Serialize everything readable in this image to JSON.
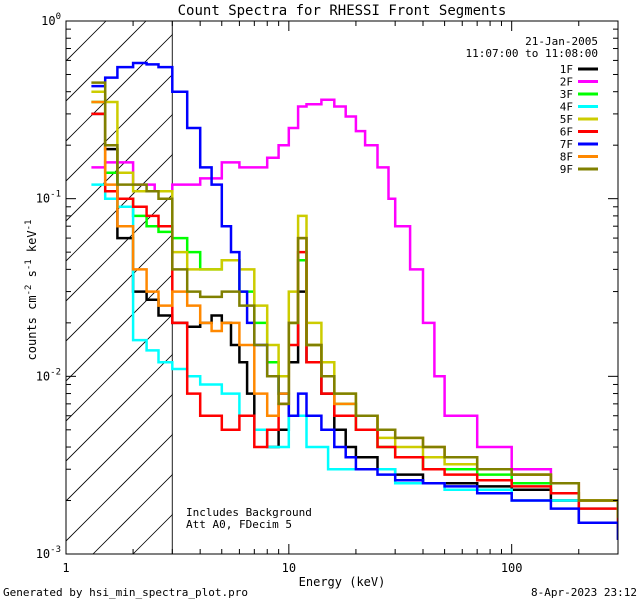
{
  "footer": {
    "left": "Generated by hsi_min_spectra_plot.pro",
    "right": "8-Apr-2023 23:12"
  },
  "chart_data": {
    "type": "line",
    "title": "Count Spectra for RHESSI Front Segments",
    "xlabel": "Energy (keV)",
    "ylabel_parts": [
      "counts cm",
      "-2",
      " s",
      "-1",
      " keV",
      "-1"
    ],
    "xscale": "log",
    "yscale": "log",
    "xlim": [
      1,
      300
    ],
    "ylim": [
      0.001,
      1
    ],
    "x_ticklabels": [
      {
        "value": 1,
        "label": "1"
      },
      {
        "value": 10,
        "label": "10"
      },
      {
        "value": 100,
        "label": "100"
      }
    ],
    "y_ticklabels": [
      {
        "value": 0.001,
        "mant": "10",
        "exp": "-3"
      },
      {
        "value": 0.01,
        "mant": "10",
        "exp": "-2"
      },
      {
        "value": 0.1,
        "mant": "10",
        "exp": "-1"
      },
      {
        "value": 1,
        "mant": "10",
        "exp": "0"
      }
    ],
    "date_label": "21-Jan-2005",
    "time_range_label": "11:07:00 to 11:08:00",
    "annotations": [
      "Includes Background",
      "Att A0, FDecim 5"
    ],
    "hatched_region": {
      "x_from": 1,
      "x_to": 3
    },
    "series": [
      {
        "name": "1F",
        "color": "#000000",
        "x": [
          1.3,
          1.5,
          1.7,
          2.0,
          2.3,
          2.6,
          3.0,
          3.5,
          4.0,
          4.5,
          5.0,
          5.5,
          6.0,
          6.5,
          7.0,
          8.0,
          9.0,
          10.0,
          11.0,
          12.0,
          14.0,
          16.0,
          18.0,
          20.0,
          25.0,
          30.0,
          40.0,
          50.0,
          70.0,
          100.0,
          150.0,
          200.0,
          300.0
        ],
        "values": [
          0.3,
          0.19,
          0.06,
          0.03,
          0.027,
          0.022,
          0.02,
          0.019,
          0.02,
          0.022,
          0.02,
          0.015,
          0.012,
          0.008,
          0.005,
          0.004,
          0.005,
          0.012,
          0.03,
          0.012,
          0.008,
          0.005,
          0.004,
          0.0035,
          0.003,
          0.0028,
          0.0025,
          0.0025,
          0.0024,
          0.0023,
          0.002,
          0.0015,
          0.0012
        ]
      },
      {
        "name": "2F",
        "color": "#ff00ff",
        "x": [
          1.3,
          1.5,
          1.7,
          2.0,
          2.5,
          3.0,
          3.5,
          4.0,
          5.0,
          6.0,
          7.0,
          8.0,
          9.0,
          10.0,
          11.0,
          12.0,
          14.0,
          16.0,
          18.0,
          20.0,
          22.0,
          25.0,
          28.0,
          30.0,
          35.0,
          40.0,
          45.0,
          50.0,
          70.0,
          100.0,
          150.0,
          200.0,
          300.0
        ],
        "values": [
          0.15,
          0.16,
          0.16,
          0.12,
          0.11,
          0.12,
          0.12,
          0.13,
          0.16,
          0.15,
          0.15,
          0.17,
          0.2,
          0.25,
          0.33,
          0.34,
          0.36,
          0.33,
          0.29,
          0.24,
          0.2,
          0.15,
          0.1,
          0.07,
          0.04,
          0.02,
          0.01,
          0.006,
          0.004,
          0.003,
          0.0025,
          0.002,
          0.0015
        ]
      },
      {
        "name": "3F",
        "color": "#00ff00",
        "x": [
          1.3,
          1.5,
          1.7,
          2.0,
          2.3,
          2.6,
          3.0,
          3.5,
          4.0,
          5.0,
          6.0,
          7.0,
          8.0,
          9.0,
          10.0,
          11.0,
          12.0,
          14.0,
          16.0,
          20.0,
          25.0,
          30.0,
          40.0,
          50.0,
          70.0,
          100.0,
          150.0,
          200.0,
          300.0
        ],
        "values": [
          0.35,
          0.14,
          0.1,
          0.08,
          0.07,
          0.065,
          0.06,
          0.05,
          0.04,
          0.045,
          0.03,
          0.02,
          0.012,
          0.008,
          0.02,
          0.045,
          0.015,
          0.01,
          0.007,
          0.005,
          0.004,
          0.0035,
          0.003,
          0.003,
          0.0028,
          0.0025,
          0.0022,
          0.002,
          0.0015
        ]
      },
      {
        "name": "4F",
        "color": "#00ffff",
        "x": [
          1.3,
          1.5,
          1.7,
          2.0,
          2.3,
          2.6,
          3.0,
          3.5,
          4.0,
          5.0,
          6.0,
          7.0,
          8.0,
          9.0,
          10.0,
          12.0,
          15.0,
          20.0,
          30.0,
          50.0,
          100.0,
          200.0,
          300.0
        ],
        "values": [
          0.12,
          0.1,
          0.09,
          0.016,
          0.014,
          0.012,
          0.011,
          0.01,
          0.009,
          0.008,
          0.006,
          0.005,
          0.004,
          0.004,
          0.006,
          0.004,
          0.003,
          0.003,
          0.0025,
          0.0023,
          0.002,
          0.0018,
          0.0015
        ]
      },
      {
        "name": "5F",
        "color": "#cccc00",
        "x": [
          1.3,
          1.5,
          1.7,
          2.0,
          2.3,
          2.6,
          3.0,
          3.5,
          4.0,
          5.0,
          6.0,
          7.0,
          8.0,
          9.0,
          10.0,
          11.0,
          12.0,
          14.0,
          16.0,
          20.0,
          25.0,
          30.0,
          40.0,
          50.0,
          70.0,
          100.0,
          150.0,
          200.0,
          300.0
        ],
        "values": [
          0.4,
          0.35,
          0.14,
          0.11,
          0.11,
          0.11,
          0.05,
          0.04,
          0.04,
          0.045,
          0.04,
          0.025,
          0.015,
          0.01,
          0.03,
          0.08,
          0.02,
          0.012,
          0.008,
          0.006,
          0.0045,
          0.004,
          0.0035,
          0.0032,
          0.003,
          0.0028,
          0.0025,
          0.002,
          0.0016
        ]
      },
      {
        "name": "6F",
        "color": "#ff0000",
        "x": [
          1.3,
          1.5,
          1.7,
          2.0,
          2.3,
          2.6,
          3.0,
          3.5,
          4.0,
          5.0,
          6.0,
          7.0,
          8.0,
          9.0,
          10.0,
          11.0,
          12.0,
          14.0,
          16.0,
          20.0,
          25.0,
          30.0,
          40.0,
          50.0,
          70.0,
          100.0,
          150.0,
          200.0,
          300.0
        ],
        "values": [
          0.3,
          0.11,
          0.1,
          0.09,
          0.08,
          0.07,
          0.02,
          0.008,
          0.006,
          0.005,
          0.006,
          0.004,
          0.005,
          0.007,
          0.015,
          0.05,
          0.012,
          0.008,
          0.006,
          0.005,
          0.004,
          0.0035,
          0.003,
          0.0028,
          0.0026,
          0.0024,
          0.0022,
          0.0018,
          0.0014
        ]
      },
      {
        "name": "7F",
        "color": "#0000ff",
        "x": [
          1.3,
          1.5,
          1.7,
          2.0,
          2.3,
          2.6,
          3.0,
          3.5,
          4.0,
          4.5,
          5.0,
          5.5,
          6.0,
          6.5,
          7.0,
          8.0,
          9.0,
          10.0,
          11.0,
          12.0,
          14.0,
          16.0,
          18.0,
          20.0,
          25.0,
          30.0,
          40.0,
          50.0,
          70.0,
          100.0,
          150.0,
          200.0,
          300.0
        ],
        "values": [
          0.43,
          0.48,
          0.55,
          0.58,
          0.57,
          0.55,
          0.4,
          0.25,
          0.15,
          0.12,
          0.07,
          0.05,
          0.03,
          0.02,
          0.015,
          0.01,
          0.008,
          0.006,
          0.008,
          0.006,
          0.005,
          0.004,
          0.0035,
          0.003,
          0.0028,
          0.0026,
          0.0025,
          0.0024,
          0.0022,
          0.002,
          0.0018,
          0.0015,
          0.0012
        ]
      },
      {
        "name": "8F",
        "color": "#ff8800",
        "x": [
          1.3,
          1.5,
          1.7,
          2.0,
          2.3,
          2.6,
          3.0,
          3.5,
          4.0,
          4.5,
          5.0,
          6.0,
          7.0,
          8.0,
          9.0,
          10.0,
          11.0,
          12.0,
          14.0,
          16.0,
          20.0,
          25.0,
          30.0,
          40.0,
          50.0,
          70.0,
          100.0,
          150.0,
          200.0,
          300.0
        ],
        "values": [
          0.35,
          0.12,
          0.07,
          0.04,
          0.03,
          0.025,
          0.03,
          0.025,
          0.02,
          0.018,
          0.02,
          0.015,
          0.008,
          0.006,
          0.008,
          0.02,
          0.06,
          0.015,
          0.01,
          0.007,
          0.006,
          0.005,
          0.0045,
          0.004,
          0.0035,
          0.003,
          0.0028,
          0.0025,
          0.002,
          0.0016
        ]
      },
      {
        "name": "9F",
        "color": "#808000",
        "x": [
          1.3,
          1.5,
          1.7,
          2.0,
          2.3,
          2.6,
          3.0,
          3.5,
          4.0,
          5.0,
          6.0,
          7.0,
          8.0,
          9.0,
          10.0,
          11.0,
          12.0,
          14.0,
          16.0,
          20.0,
          25.0,
          30.0,
          40.0,
          50.0,
          70.0,
          100.0,
          150.0,
          200.0,
          300.0
        ],
        "values": [
          0.45,
          0.2,
          0.12,
          0.12,
          0.11,
          0.1,
          0.04,
          0.03,
          0.028,
          0.03,
          0.025,
          0.015,
          0.01,
          0.007,
          0.02,
          0.06,
          0.015,
          0.01,
          0.008,
          0.006,
          0.005,
          0.0045,
          0.004,
          0.0035,
          0.003,
          0.0028,
          0.0025,
          0.002,
          0.0016
        ]
      }
    ]
  }
}
